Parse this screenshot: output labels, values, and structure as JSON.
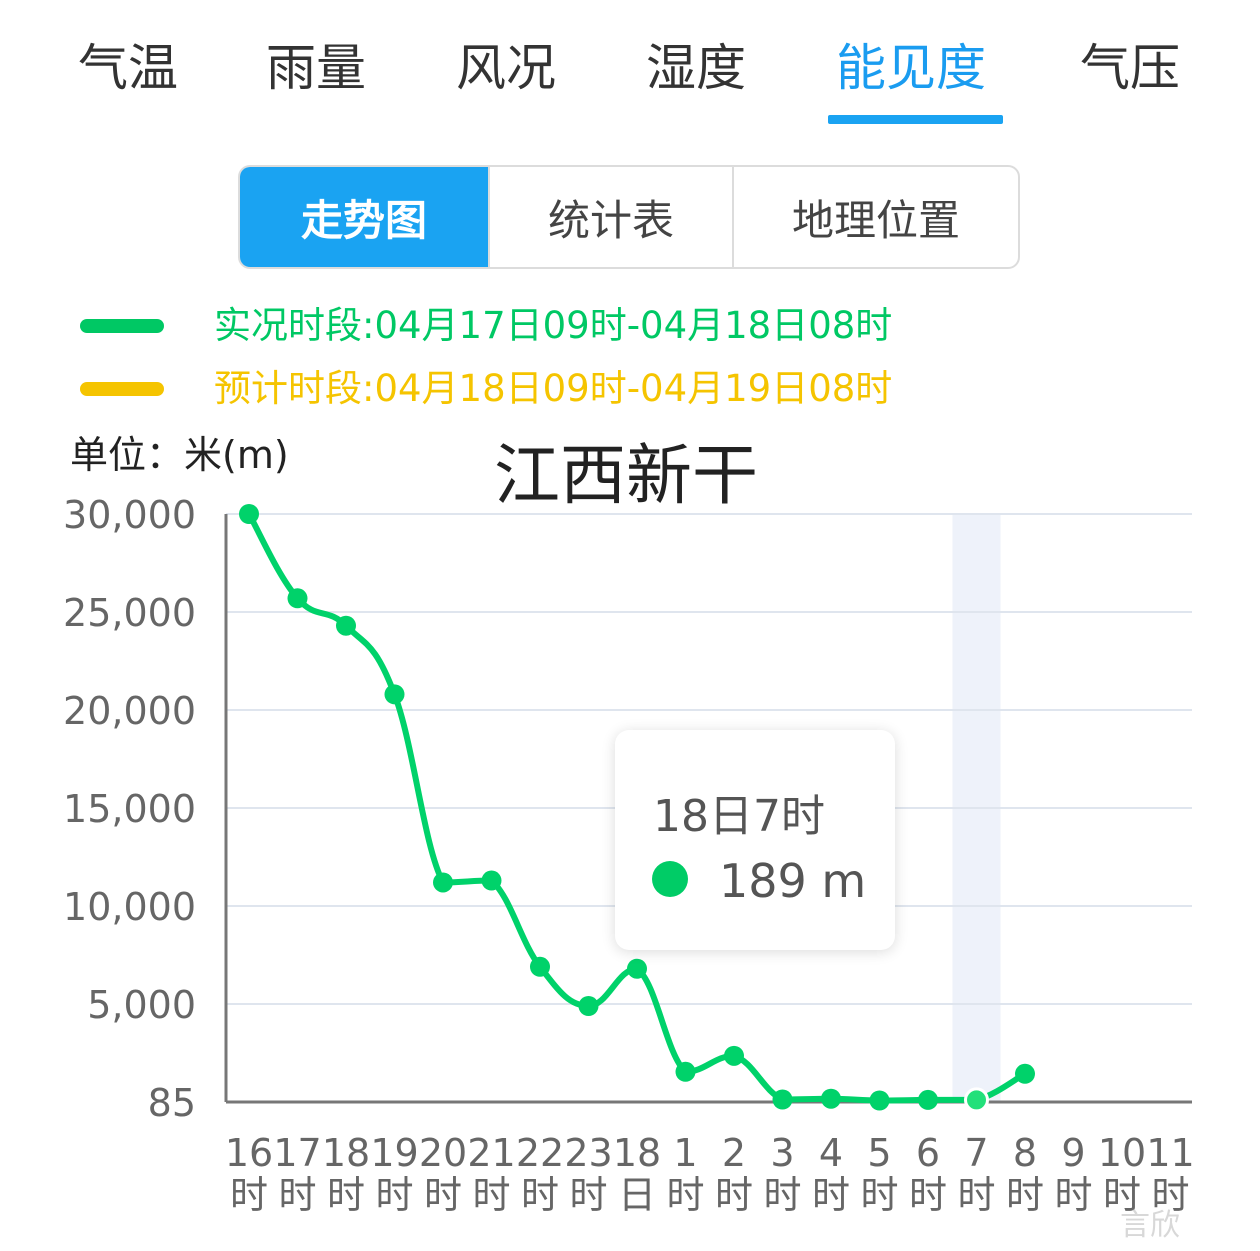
{
  "tabs": [
    {
      "label": "气温",
      "active": false
    },
    {
      "label": "雨量",
      "active": false
    },
    {
      "label": "风况",
      "active": false
    },
    {
      "label": "湿度",
      "active": false
    },
    {
      "label": "能见度",
      "active": true
    },
    {
      "label": "气压",
      "active": false
    }
  ],
  "segments": [
    {
      "label": "走势图",
      "active": true
    },
    {
      "label": "统计表",
      "active": false
    },
    {
      "label": "地理位置",
      "active": false
    }
  ],
  "legend": {
    "observed": {
      "label": "实况时段:04月17日09时-04月18日08时",
      "color": "#00c864"
    },
    "forecast": {
      "label": "预计时段:04月18日09时-04月19日08时",
      "color": "#f5c400"
    }
  },
  "unit_label": "单位：米(m)",
  "tooltip": {
    "time": "18日7时",
    "value": "189 m",
    "color": "#00cc66"
  },
  "watermark": "言欣",
  "colors": {
    "accent": "#1aa3f2",
    "line": "#00d26a",
    "highlight_band": "#eef2fa"
  },
  "chart_data": {
    "type": "line",
    "title": "江西新干",
    "ylabel": "",
    "xlabel": "",
    "y_tick_labels": [
      "85",
      "5,000",
      "10,000",
      "15,000",
      "20,000",
      "25,000",
      "30,000"
    ],
    "y_tick_values": [
      85,
      5000,
      10000,
      15000,
      20000,
      25000,
      30000
    ],
    "ylim": [
      85,
      30000
    ],
    "categories": [
      {
        "top": "16",
        "bottom": "时"
      },
      {
        "top": "17",
        "bottom": "时"
      },
      {
        "top": "18",
        "bottom": "时"
      },
      {
        "top": "19",
        "bottom": "时"
      },
      {
        "top": "20",
        "bottom": "时"
      },
      {
        "top": "21",
        "bottom": "时"
      },
      {
        "top": "22",
        "bottom": "时"
      },
      {
        "top": "23",
        "bottom": "时"
      },
      {
        "top": "18",
        "bottom": "日"
      },
      {
        "top": "1",
        "bottom": "时"
      },
      {
        "top": "2",
        "bottom": "时"
      },
      {
        "top": "3",
        "bottom": "时"
      },
      {
        "top": "4",
        "bottom": "时"
      },
      {
        "top": "5",
        "bottom": "时"
      },
      {
        "top": "6",
        "bottom": "时"
      },
      {
        "top": "7",
        "bottom": "时"
      },
      {
        "top": "8",
        "bottom": "时"
      },
      {
        "top": "9",
        "bottom": "时"
      },
      {
        "top": "10",
        "bottom": "时"
      },
      {
        "top": "11",
        "bottom": "时"
      }
    ],
    "series": [
      {
        "values": [
          30000,
          25700,
          24300,
          20800,
          11200,
          11300,
          6900,
          4900,
          6800,
          1600,
          2400,
          210,
          250,
          160,
          190,
          189,
          1500,
          null,
          null,
          null
        ]
      }
    ],
    "highlight_index": 15,
    "grid": true
  }
}
